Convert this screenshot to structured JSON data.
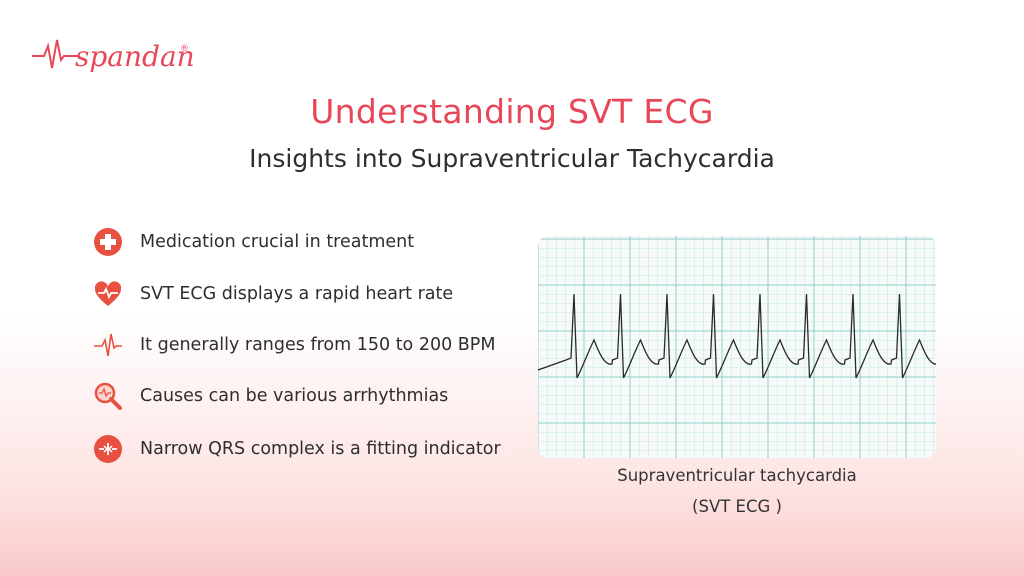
{
  "logo": {
    "text": "spandan",
    "mark": "®"
  },
  "header": {
    "title": "Understanding SVT ECG",
    "subtitle": "Insights into Supraventricular Tachycardia"
  },
  "bullets": [
    "Medication crucial in treatment",
    "SVT ECG displays a rapid heart rate",
    "It generally ranges from 150 to 200 BPM",
    "Causes can be various arrhythmias",
    "Narrow QRS complex is a fitting indicator"
  ],
  "ecg": {
    "caption": [
      "Supraventricular tachycardia",
      "(SVT ECG )"
    ]
  }
}
